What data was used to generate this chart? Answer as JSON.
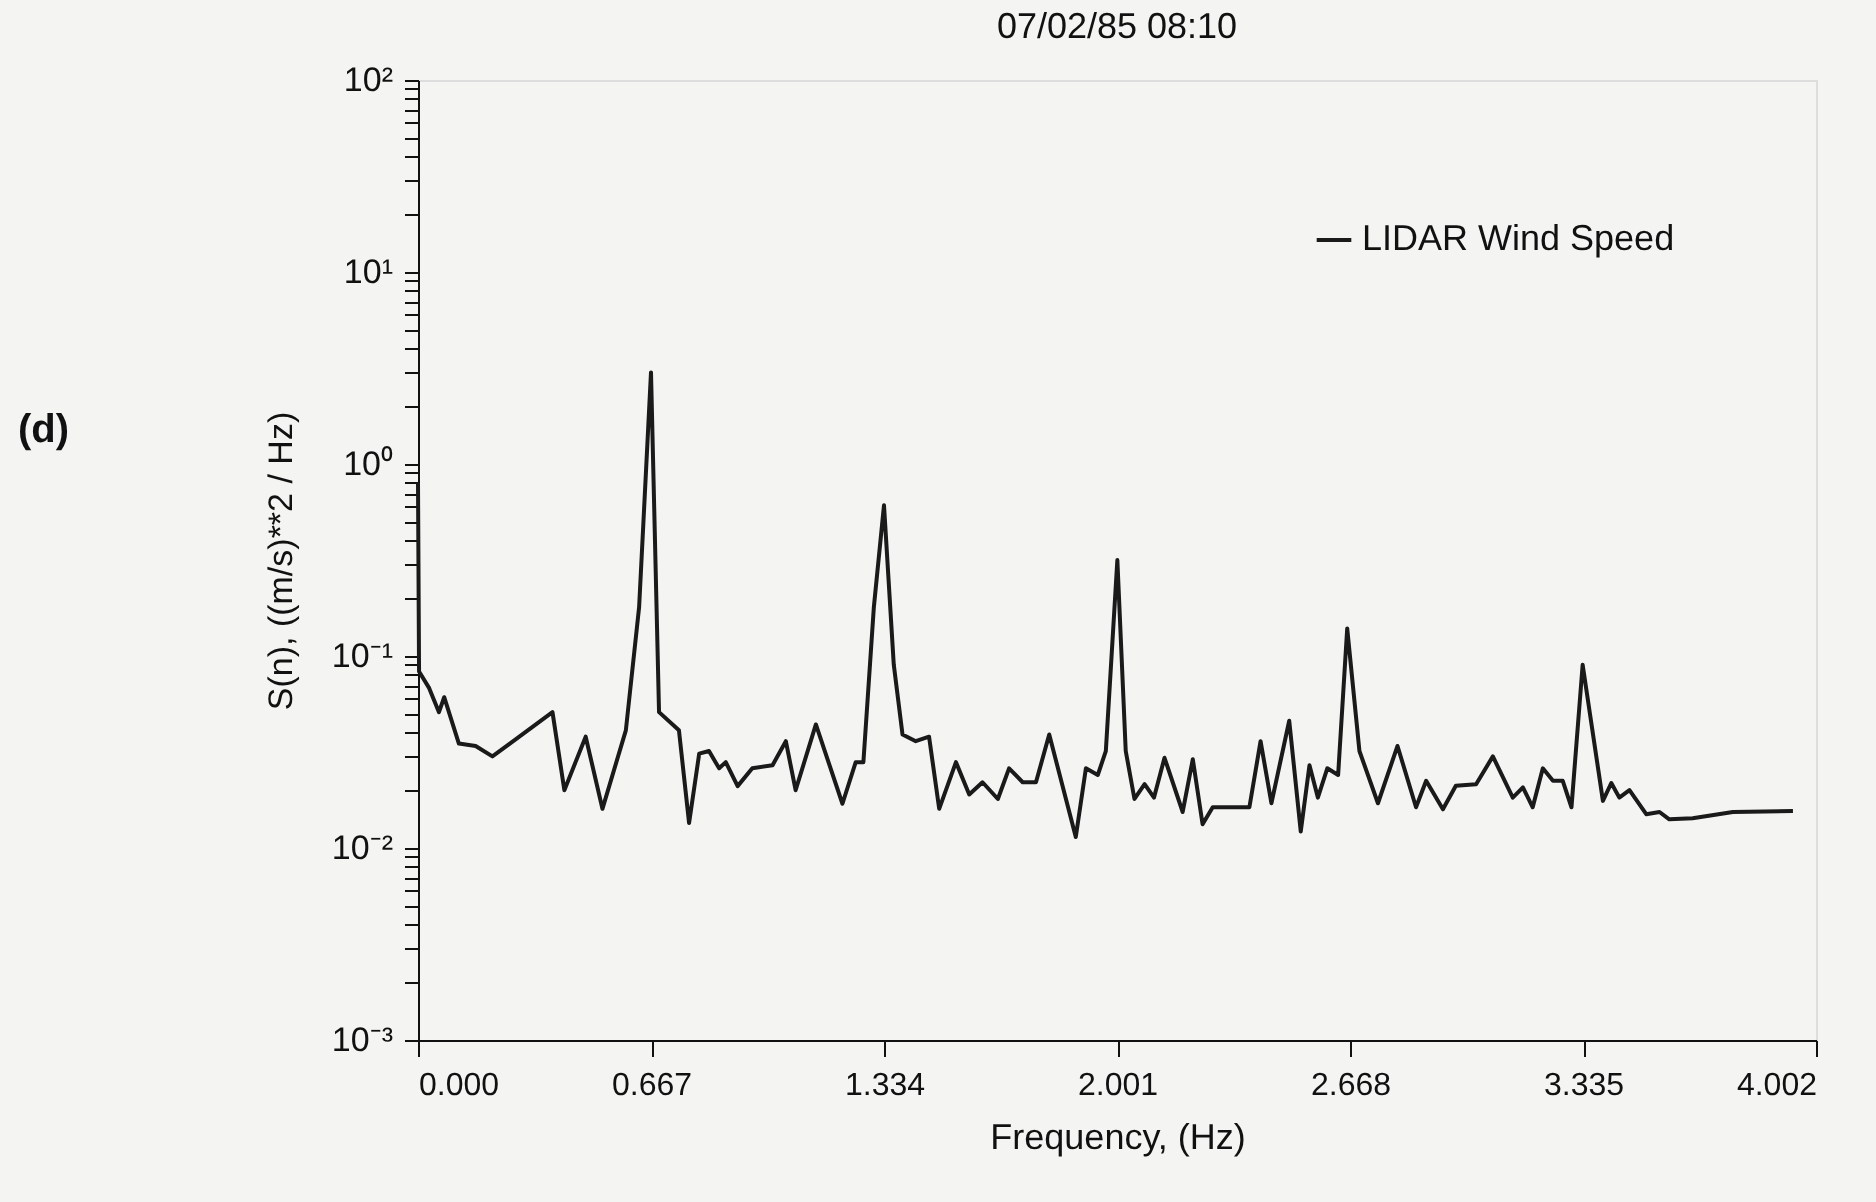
{
  "chart_data": {
    "type": "line",
    "title": "07/02/85  08:10",
    "xlabel": "Frequency, (Hz)",
    "ylabel": "S(n), ((m/s)**2 / Hz)",
    "annotations": [
      "(d)"
    ],
    "x": [
      0.0,
      0.003,
      0.032,
      0.06,
      0.075,
      0.117,
      0.165,
      0.213,
      0.385,
      0.419,
      0.48,
      0.528,
      0.595,
      0.633,
      0.667,
      0.69,
      0.747,
      0.776,
      0.805,
      0.833,
      0.862,
      0.881,
      0.915,
      0.957,
      1.015,
      1.053,
      1.081,
      1.139,
      1.215,
      1.253,
      1.275,
      1.305,
      1.334,
      1.362,
      1.387,
      1.425,
      1.463,
      1.492,
      1.54,
      1.578,
      1.616,
      1.66,
      1.692,
      1.731,
      1.769,
      1.807,
      1.883,
      1.912,
      1.946,
      1.969,
      2.002,
      2.026,
      2.051,
      2.08,
      2.107,
      2.137,
      2.189,
      2.218,
      2.246,
      2.275,
      2.38,
      2.412,
      2.443,
      2.494,
      2.527,
      2.552,
      2.576,
      2.603,
      2.634,
      2.66,
      2.695,
      2.748,
      2.804,
      2.857,
      2.886,
      2.934,
      2.971,
      3.029,
      3.077,
      3.134,
      3.163,
      3.191,
      3.22,
      3.249,
      3.277,
      3.302,
      3.334,
      3.392,
      3.416,
      3.439,
      3.468,
      3.516,
      3.554,
      3.582,
      3.649,
      3.764,
      3.936
    ],
    "series": [
      {
        "name": "LIDAR Wind Speed",
        "color": "#1a1a1a",
        "values": [
          0.8,
          0.083,
          0.068,
          0.051,
          0.061,
          0.035,
          0.034,
          0.03,
          0.051,
          0.02,
          0.038,
          0.016,
          0.041,
          0.18,
          3.0,
          0.051,
          0.041,
          0.0135,
          0.031,
          0.032,
          0.026,
          0.028,
          0.021,
          0.026,
          0.027,
          0.036,
          0.02,
          0.044,
          0.017,
          0.028,
          0.028,
          0.18,
          0.61,
          0.09,
          0.039,
          0.036,
          0.038,
          0.016,
          0.028,
          0.019,
          0.022,
          0.018,
          0.026,
          0.022,
          0.022,
          0.039,
          0.0114,
          0.026,
          0.024,
          0.032,
          0.316,
          0.032,
          0.018,
          0.0215,
          0.0183,
          0.0295,
          0.0154,
          0.029,
          0.0133,
          0.0163,
          0.0163,
          0.036,
          0.0171,
          0.046,
          0.0122,
          0.027,
          0.0183,
          0.026,
          0.024,
          0.139,
          0.032,
          0.0171,
          0.034,
          0.0163,
          0.0224,
          0.0159,
          0.0211,
          0.0215,
          0.03,
          0.0183,
          0.0207,
          0.0163,
          0.026,
          0.0224,
          0.0224,
          0.0163,
          0.09,
          0.0176,
          0.0218,
          0.0183,
          0.02,
          0.015,
          0.0154,
          0.0141,
          0.0143,
          0.0154,
          0.0156
        ]
      }
    ],
    "xlim": [
      0,
      4.002
    ],
    "xticks": [
      {
        "value": 0,
        "label": "0.000"
      },
      {
        "value": 0.667,
        "label": "0.667"
      },
      {
        "value": 1.334,
        "label": "1.334"
      },
      {
        "value": 2.001,
        "label": "2.001"
      },
      {
        "value": 2.668,
        "label": "2.668"
      },
      {
        "value": 3.335,
        "label": "3.335"
      },
      {
        "value": 4.002,
        "label": "4.002"
      }
    ],
    "ylim": [
      0.001,
      100
    ],
    "yticks": [
      {
        "value": 0.001,
        "label": "10⁻³"
      },
      {
        "value": 0.002,
        "label": null
      },
      {
        "value": 0.003,
        "label": null
      },
      {
        "value": 0.004,
        "label": null
      },
      {
        "value": 0.005,
        "label": null
      },
      {
        "value": 0.006,
        "label": null
      },
      {
        "value": 0.007,
        "label": null
      },
      {
        "value": 0.008,
        "label": null
      },
      {
        "value": 0.009,
        "label": null
      },
      {
        "value": 0.01,
        "label": "10⁻²"
      },
      {
        "value": 0.02,
        "label": null
      },
      {
        "value": 0.03,
        "label": null
      },
      {
        "value": 0.04,
        "label": null
      },
      {
        "value": 0.05,
        "label": null
      },
      {
        "value": 0.06,
        "label": null
      },
      {
        "value": 0.07,
        "label": null
      },
      {
        "value": 0.08,
        "label": null
      },
      {
        "value": 0.09,
        "label": null
      },
      {
        "value": 0.1,
        "label": "10⁻¹"
      },
      {
        "value": 0.2,
        "label": null
      },
      {
        "value": 0.3,
        "label": null
      },
      {
        "value": 0.4,
        "label": null
      },
      {
        "value": 0.5,
        "label": null
      },
      {
        "value": 0.6,
        "label": null
      },
      {
        "value": 0.7,
        "label": null
      },
      {
        "value": 0.8,
        "label": null
      },
      {
        "value": 0.9,
        "label": null
      },
      {
        "value": 1,
        "label": "10⁰"
      },
      {
        "value": 2,
        "label": null
      },
      {
        "value": 3,
        "label": null
      },
      {
        "value": 4,
        "label": null
      },
      {
        "value": 5,
        "label": null
      },
      {
        "value": 6,
        "label": null
      },
      {
        "value": 7,
        "label": null
      },
      {
        "value": 8,
        "label": null
      },
      {
        "value": 9,
        "label": null
      },
      {
        "value": 10,
        "label": "10¹"
      },
      {
        "value": 20,
        "label": null
      },
      {
        "value": 30,
        "label": null
      },
      {
        "value": 40,
        "label": null
      },
      {
        "value": 50,
        "label": null
      },
      {
        "value": 60,
        "label": null
      },
      {
        "value": 70,
        "label": null
      },
      {
        "value": 80,
        "label": null
      },
      {
        "value": 90,
        "label": null
      },
      {
        "value": 100,
        "label": "10²"
      }
    ],
    "log": true,
    "grid": false,
    "legend": "top right",
    "marker": "none",
    "line_style": "solid"
  }
}
